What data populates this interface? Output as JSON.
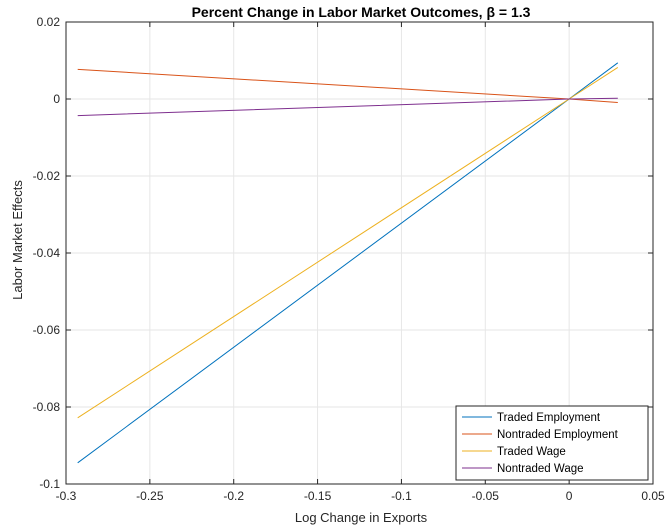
{
  "chart_data": {
    "type": "line",
    "title": "Percent Change in Labor Market Outcomes, β = 1.3",
    "xlabel": "Log Change in Exports",
    "ylabel": "Labor Market Effects",
    "xlim": [
      -0.3,
      0.05
    ],
    "ylim": [
      -0.1,
      0.02
    ],
    "xticks": [
      -0.3,
      -0.25,
      -0.2,
      -0.15,
      -0.1,
      -0.05,
      0,
      0.05
    ],
    "xtick_labels": [
      "-0.3",
      "-0.25",
      "-0.2",
      "-0.15",
      "-0.1",
      "-0.05",
      "0",
      "0.05"
    ],
    "yticks": [
      -0.1,
      -0.08,
      -0.06,
      -0.04,
      -0.02,
      0,
      0.02
    ],
    "ytick_labels": [
      "-0.1",
      "-0.08",
      "-0.06",
      "-0.04",
      "-0.02",
      "0",
      "0.02"
    ],
    "grid": true,
    "legend_position": "bottom-right",
    "series": [
      {
        "name": "Traded Employment",
        "color": "#0072BD",
        "x": [
          -0.293,
          0,
          0.029
        ],
        "y": [
          -0.0945,
          0,
          0.0094
        ]
      },
      {
        "name": "Nontraded Employment",
        "color": "#D95319",
        "x": [
          -0.293,
          0,
          0.029
        ],
        "y": [
          0.0077,
          0,
          -0.0009
        ]
      },
      {
        "name": "Traded Wage",
        "color": "#EDB120",
        "x": [
          -0.293,
          0,
          0.029
        ],
        "y": [
          -0.0828,
          0,
          0.0082
        ]
      },
      {
        "name": "Nontraded Wage",
        "color": "#7E2F8E",
        "x": [
          -0.293,
          0,
          0.029
        ],
        "y": [
          -0.0043,
          0,
          0.0002
        ]
      }
    ]
  }
}
